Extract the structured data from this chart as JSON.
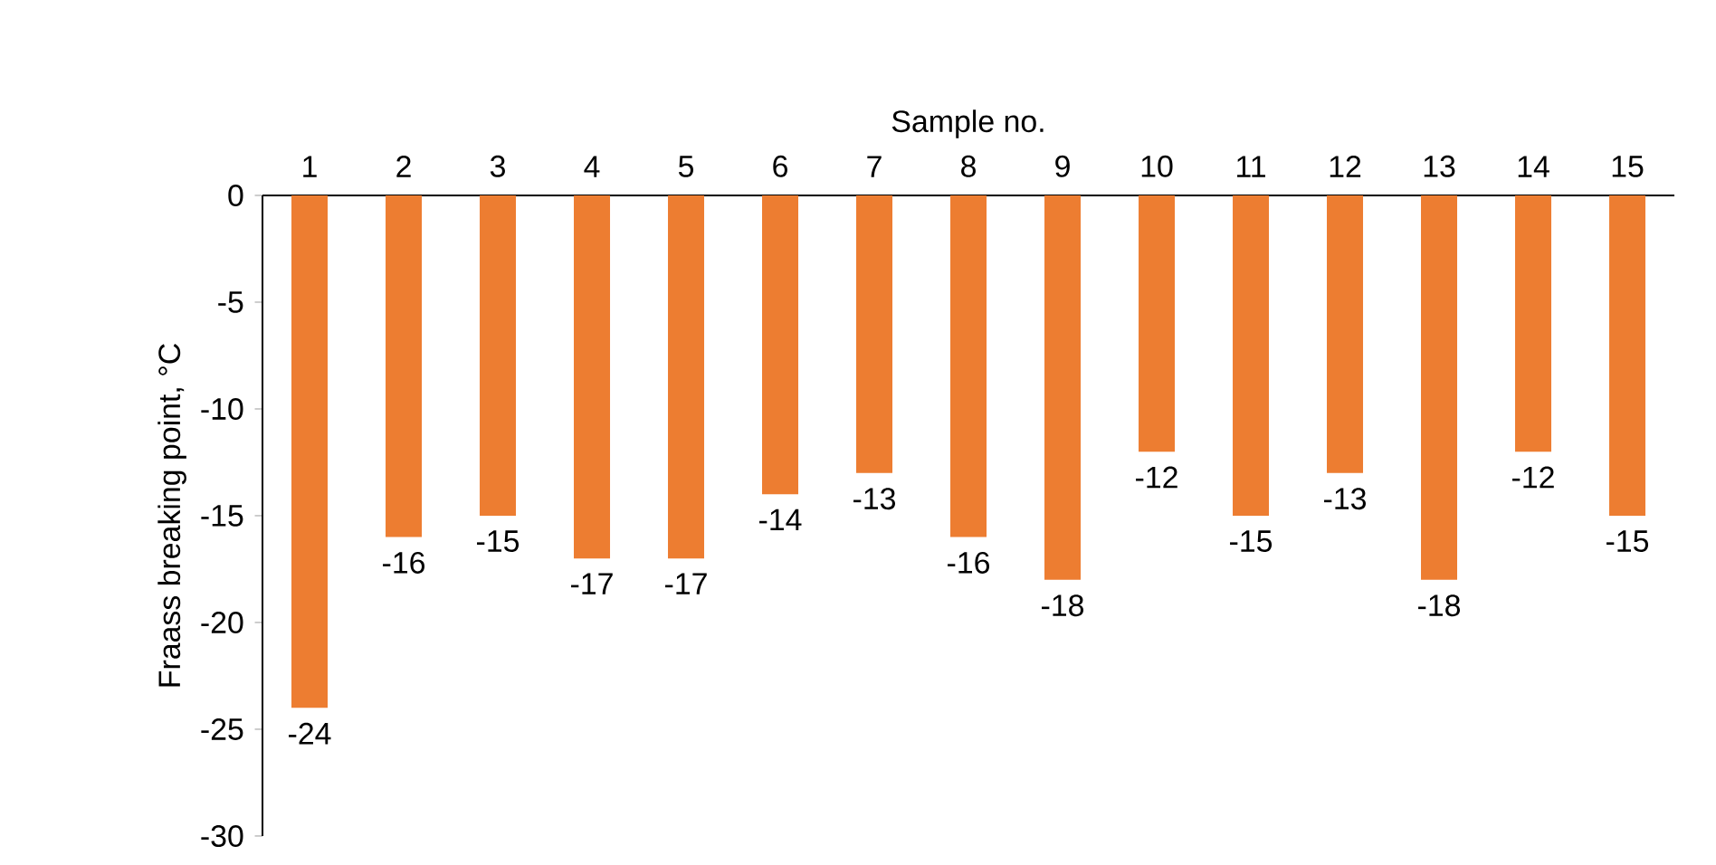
{
  "chart_data": {
    "type": "bar",
    "xlabel": "Sample no.",
    "ylabel": "Fraass breaking point, °C",
    "categories": [
      "1",
      "2",
      "3",
      "4",
      "5",
      "6",
      "7",
      "8",
      "9",
      "10",
      "11",
      "12",
      "13",
      "14",
      "15"
    ],
    "values": [
      -24,
      -16,
      -15,
      -17,
      -17,
      -14,
      -13,
      -16,
      -18,
      -12,
      -15,
      -13,
      -18,
      -12,
      -15
    ],
    "color": "#ed7d31",
    "ylim": [
      -30,
      0
    ],
    "yticks": [
      -30,
      -25,
      -20,
      -15,
      -10,
      -5,
      0
    ],
    "data_labels": true
  }
}
